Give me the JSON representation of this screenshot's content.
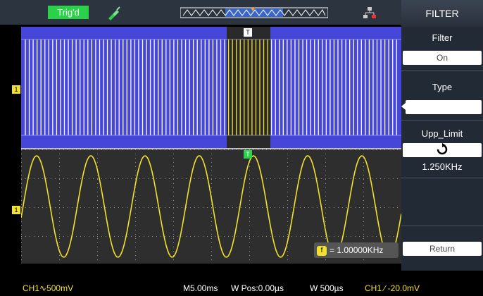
{
  "topbar": {
    "status": "Trig'd",
    "status_color": "#2cd14a",
    "probe_icon": "probe-icon",
    "network_icon": "network-icon"
  },
  "menu": {
    "title": "FILTER",
    "filter_label": "Filter",
    "filter_value": "On",
    "type_label": "Type",
    "type_icon": "lowpass-filter-icon",
    "upp_limit_label": "Upp_Limit",
    "adjust_icon": "rotate-knob-icon",
    "upp_limit_value": "1.250KHz",
    "return_label": "Return"
  },
  "channel1": {
    "marker_top": "1",
    "marker_bottom": "1",
    "trigger_marker": "T",
    "frequency_badge": "f",
    "frequency_text": "= 1.00000KHz",
    "trace_color": "#f2e12e"
  },
  "status_bar": {
    "ch1_scale": "CH1∿500mV",
    "timebase": "M5.00ms",
    "w_pos": "W Pos:0.00µs",
    "window": "W 500µs",
    "trigger": "CH1 ∕ -20.0mV"
  },
  "colors": {
    "overview_bg": "#4646d8",
    "window_bg": "#2a2a2a",
    "grid_bg": "#2e2e2e"
  }
}
